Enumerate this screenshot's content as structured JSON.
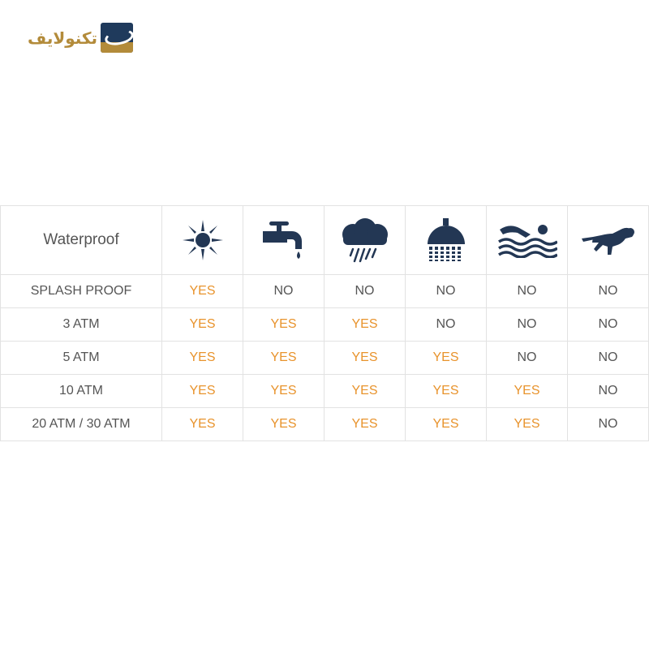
{
  "logo": {
    "text": "تکنولایف"
  },
  "colors": {
    "icon": "#233754",
    "yes": "#e8932c",
    "no": "#555555",
    "logo_gold": "#b38b3a",
    "logo_navy": "#1f3a5c"
  },
  "table": {
    "header": {
      "label": "Waterproof",
      "icons": [
        "sun-icon",
        "faucet-icon",
        "rain-cloud-icon",
        "shower-icon",
        "swimming-icon",
        "scuba-diver-icon"
      ]
    },
    "rows": [
      {
        "label": "SPLASH PROOF",
        "values": [
          "YES",
          "NO",
          "NO",
          "NO",
          "NO",
          "NO"
        ]
      },
      {
        "label": "3 ATM",
        "values": [
          "YES",
          "YES",
          "YES",
          "NO",
          "NO",
          "NO"
        ]
      },
      {
        "label": "5 ATM",
        "values": [
          "YES",
          "YES",
          "YES",
          "YES",
          "NO",
          "NO"
        ]
      },
      {
        "label": "10 ATM",
        "values": [
          "YES",
          "YES",
          "YES",
          "YES",
          "YES",
          "NO"
        ]
      },
      {
        "label": "20 ATM / 30 ATM",
        "values": [
          "YES",
          "YES",
          "YES",
          "YES",
          "YES",
          "NO"
        ]
      }
    ]
  }
}
